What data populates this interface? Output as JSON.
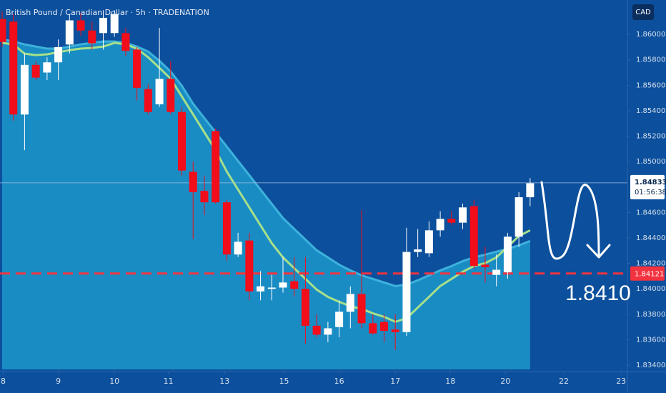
{
  "chart_data": {
    "type": "candlestick",
    "title": "British Pound / Canadian Dollar · 5h · TRADENATION",
    "currency": "CAD",
    "up_color": "#ffffff",
    "down_color": "#f20d1a",
    "open": [
      1.8612,
      1.861,
      1.8537,
      1.8576,
      1.857,
      1.8578,
      1.8592,
      1.8611,
      1.8603,
      1.8601,
      1.8601,
      1.8601,
      1.8588,
      1.8557,
      1.8545,
      1.8565,
      1.8539,
      1.8492,
      1.8477,
      1.8524,
      1.8468,
      1.8427,
      1.8438,
      1.8398,
      1.84,
      1.8401,
      1.8406,
      1.84,
      1.8371,
      1.8364,
      1.837,
      1.8382,
      1.8396,
      1.8373,
      1.8374,
      1.8368,
      1.8366,
      1.8429,
      1.8428,
      1.8446,
      1.8455,
      1.8452,
      1.8465,
      1.8419,
      1.8411,
      1.8413,
      1.8441,
      1.8472
    ],
    "high": [
      1.8618,
      1.8616,
      1.8585,
      1.8579,
      1.8582,
      1.8596,
      1.8616,
      1.8617,
      1.861,
      1.8619,
      1.8619,
      1.8605,
      1.859,
      1.8561,
      1.8605,
      1.8579,
      1.8543,
      1.85,
      1.8489,
      1.8526,
      1.847,
      1.8444,
      1.8444,
      1.8414,
      1.8411,
      1.8425,
      1.8425,
      1.8425,
      1.838,
      1.8374,
      1.8391,
      1.8402,
      1.8462,
      1.838,
      1.838,
      1.838,
      1.8448,
      1.8447,
      1.8453,
      1.8461,
      1.8461,
      1.8467,
      1.847,
      1.8433,
      1.8427,
      1.8444,
      1.8476,
      1.8487
    ],
    "low": [
      1.859,
      1.8532,
      1.8509,
      1.8564,
      1.8564,
      1.8564,
      1.8585,
      1.8599,
      1.8588,
      1.8588,
      1.8598,
      1.8583,
      1.8548,
      1.8537,
      1.8543,
      1.8537,
      1.8489,
      1.8439,
      1.8458,
      1.8467,
      1.8422,
      1.8425,
      1.8391,
      1.8391,
      1.8391,
      1.8397,
      1.8394,
      1.8357,
      1.8362,
      1.8358,
      1.8362,
      1.8369,
      1.8369,
      1.8364,
      1.8358,
      1.8352,
      1.8363,
      1.8425,
      1.8425,
      1.8441,
      1.845,
      1.8447,
      1.8416,
      1.8405,
      1.8402,
      1.8408,
      1.8433,
      1.8465
    ],
    "close": [
      1.8594,
      1.8537,
      1.8576,
      1.8566,
      1.8578,
      1.859,
      1.8611,
      1.8603,
      1.8593,
      1.8613,
      1.8616,
      1.8587,
      1.8558,
      1.8539,
      1.8565,
      1.8539,
      1.8493,
      1.8476,
      1.8468,
      1.8468,
      1.8427,
      1.8437,
      1.8398,
      1.8402,
      1.8401,
      1.8405,
      1.84,
      1.8371,
      1.8364,
      1.8369,
      1.8382,
      1.8396,
      1.8373,
      1.8365,
      1.8367,
      1.8366,
      1.8429,
      1.8431,
      1.8446,
      1.8455,
      1.8452,
      1.8464,
      1.8418,
      1.8417,
      1.8415,
      1.8441,
      1.8472,
      1.8483
    ],
    "moving_average": {
      "color": "#a6e08a",
      "values": [
        1.85933,
        1.85921,
        1.85848,
        1.85837,
        1.85843,
        1.8586,
        1.85876,
        1.85888,
        1.85893,
        1.85904,
        1.85933,
        1.85921,
        1.85888,
        1.8582,
        1.85736,
        1.85652,
        1.85511,
        1.85371,
        1.8523,
        1.8509,
        1.84921,
        1.8478,
        1.8464,
        1.84499,
        1.84359,
        1.84247,
        1.84162,
        1.84078,
        1.83994,
        1.83937,
        1.83898,
        1.83864,
        1.83842,
        1.83808,
        1.8378,
        1.83741,
        1.83769,
        1.83853,
        1.83937,
        1.84022,
        1.84078,
        1.84134,
        1.84179,
        1.84202,
        1.84247,
        1.84331,
        1.84415,
        1.8446
      ]
    },
    "band": {
      "color": "#1a8cc4",
      "edge_color": "#3db2dc",
      "values": [
        1.85961,
        1.85944,
        1.85921,
        1.85904,
        1.85888,
        1.85888,
        1.85904,
        1.85921,
        1.85933,
        1.85944,
        1.85944,
        1.85933,
        1.85904,
        1.85865,
        1.85792,
        1.85708,
        1.85595,
        1.85455,
        1.85342,
        1.8523,
        1.85118,
        1.85005,
        1.84893,
        1.8478,
        1.84668,
        1.84556,
        1.84471,
        1.84387,
        1.84303,
        1.84247,
        1.8419,
        1.84145,
        1.84106,
        1.84078,
        1.8405,
        1.84022,
        1.84033,
        1.84067,
        1.84106,
        1.84145,
        1.84179,
        1.84218,
        1.84247,
        1.84269,
        1.84292,
        1.84314,
        1.84342,
        1.84376
      ]
    },
    "last_price": {
      "value": 1.84833,
      "countdown": "01:56:38"
    },
    "level": {
      "value": 1.84121,
      "color": "#f2333f"
    },
    "annotation": "1.8410",
    "ylim": [
      1.8335,
      1.8627
    ],
    "yticks": [
      {
        "value": 1.86,
        "label": "1.86000"
      },
      {
        "value": 1.858,
        "label": "1.85800"
      },
      {
        "value": 1.856,
        "label": "1.85600"
      },
      {
        "value": 1.854,
        "label": "1.85400"
      },
      {
        "value": 1.852,
        "label": "1.85200"
      },
      {
        "value": 1.85,
        "label": "1.85000"
      },
      {
        "value": 1.846,
        "label": "1.84600"
      },
      {
        "value": 1.844,
        "label": "1.84400"
      },
      {
        "value": 1.842,
        "label": "1.84200"
      },
      {
        "value": 1.84,
        "label": "1.84000"
      },
      {
        "value": 1.838,
        "label": "1.83800"
      },
      {
        "value": 1.836,
        "label": "1.83600"
      },
      {
        "value": 1.834,
        "label": "1.83400"
      }
    ],
    "xlim": [
      -0.19,
      55.66
    ],
    "xticks": [
      {
        "value": 0.1,
        "label": "8"
      },
      {
        "value": 5,
        "label": "9"
      },
      {
        "value": 10,
        "label": "10"
      },
      {
        "value": 14.8,
        "label": "11"
      },
      {
        "value": 19.8,
        "label": "13"
      },
      {
        "value": 25.1,
        "label": "15"
      },
      {
        "value": 30,
        "label": "16"
      },
      {
        "value": 35,
        "label": "17"
      },
      {
        "value": 39.9,
        "label": "18"
      },
      {
        "value": 44.8,
        "label": "20"
      },
      {
        "value": 50,
        "label": "22"
      },
      {
        "value": 55.1,
        "label": "23"
      }
    ]
  }
}
